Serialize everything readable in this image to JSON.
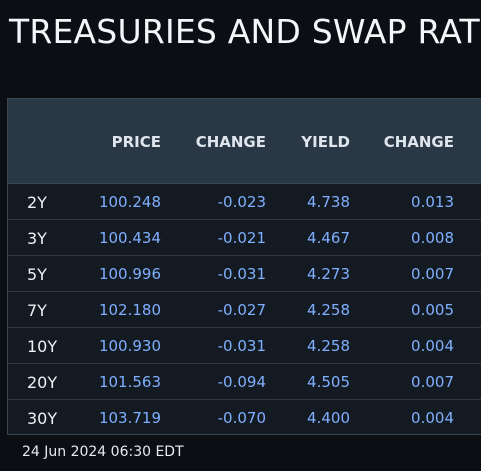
{
  "title": "TREASURIES AND SWAP RAT",
  "table": {
    "headers": {
      "price": "PRICE",
      "change1": "CHANGE",
      "yield": "YIELD",
      "change2": "CHANGE"
    },
    "rows": [
      {
        "tenor": "2Y",
        "price": "100.248",
        "change1": "-0.023",
        "yield": "4.738",
        "change2": "0.013"
      },
      {
        "tenor": "3Y",
        "price": "100.434",
        "change1": "-0.021",
        "yield": "4.467",
        "change2": "0.008"
      },
      {
        "tenor": "5Y",
        "price": "100.996",
        "change1": "-0.031",
        "yield": "4.273",
        "change2": "0.007"
      },
      {
        "tenor": "7Y",
        "price": "102.180",
        "change1": "-0.027",
        "yield": "4.258",
        "change2": "0.005"
      },
      {
        "tenor": "10Y",
        "price": "100.930",
        "change1": "-0.031",
        "yield": "4.258",
        "change2": "0.004"
      },
      {
        "tenor": "20Y",
        "price": "101.563",
        "change1": "-0.094",
        "yield": "4.505",
        "change2": "0.007"
      },
      {
        "tenor": "30Y",
        "price": "103.719",
        "change1": "-0.070",
        "yield": "4.400",
        "change2": "0.004"
      }
    ]
  },
  "footer": {
    "timestamp": "24 Jun 2024 06:30 EDT"
  },
  "colors": {
    "background": "#0b0f14",
    "header_bg": "#2a3744",
    "value_blue": "#7fb0ff"
  }
}
